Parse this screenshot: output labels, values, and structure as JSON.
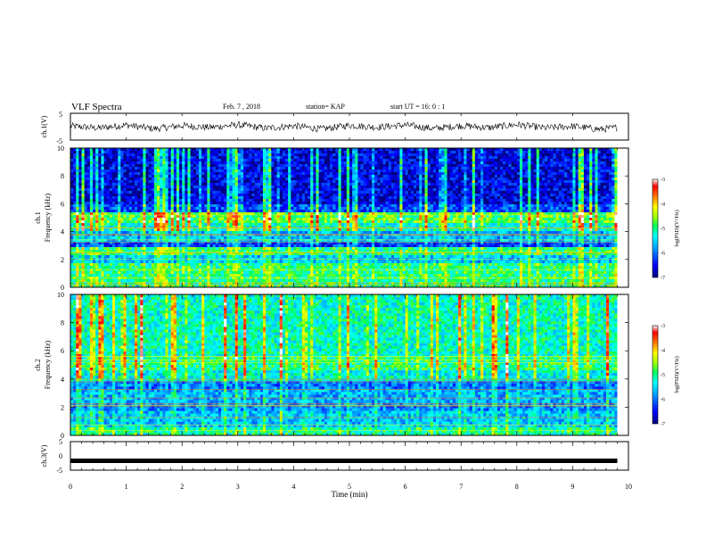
{
  "header": {
    "title": "VLF Spectra",
    "date": "Feb. 7 , 2018",
    "station": "station= KAP",
    "start": "start UT = 16: 0 : 1"
  },
  "colors": {
    "colormap": [
      "#00007a",
      "#0000ff",
      "#00a0ff",
      "#00ffff",
      "#00ff60",
      "#a0ff00",
      "#ffff00",
      "#ff8000",
      "#ff0000",
      "#ffffff"
    ]
  },
  "chart_data": [
    {
      "type": "line",
      "panel": "ch1-waveform",
      "ylabel": "ch.1(V)",
      "ylim": [
        -5,
        5
      ],
      "yticks": [
        "5",
        "-5"
      ],
      "xlim": [
        0,
        10
      ],
      "note_values": "continuous noisy waveform oscillating roughly between -2 and 1.5 V",
      "x": [
        0,
        0.5,
        1,
        1.5,
        2,
        2.5,
        3,
        3.5,
        4,
        4.5,
        5,
        5.5,
        6,
        6.5,
        7,
        7.5,
        8,
        8.5,
        9,
        9.5,
        9.8
      ],
      "y": [
        0.2,
        -0.5,
        0.6,
        -0.8,
        0.4,
        -0.3,
        0.7,
        -0.6,
        0.3,
        -0.9,
        0.5,
        -0.2,
        0.6,
        -0.7,
        0.4,
        -0.4,
        0.8,
        -0.5,
        0.2,
        -1.0,
        -0.3
      ]
    },
    {
      "type": "heatmap",
      "panel": "ch1-spectrogram",
      "ylabel": "ch.1\nFrequency (kHz)",
      "ylim": [
        0,
        10
      ],
      "yticks": [
        "0",
        "2",
        "4",
        "6",
        "8",
        "10"
      ],
      "xlim": [
        0,
        9.8
      ],
      "colorbar": {
        "label": "log(PSD)(V²/Hz)",
        "range": [
          -7,
          -3
        ],
        "ticks": [
          "-3",
          "-4",
          "-5",
          "-6",
          "-7"
        ]
      },
      "bands": [
        {
          "from": 0,
          "to": 0.5,
          "level": -5
        },
        {
          "from": 0.5,
          "to": 1.8,
          "level": -5.0
        },
        {
          "from": 1.8,
          "to": 2.3,
          "level": -5.6
        },
        {
          "from": 2.3,
          "to": 2.8,
          "level": -5.0
        },
        {
          "from": 2.8,
          "to": 3.3,
          "level": -6.3
        },
        {
          "from": 3.3,
          "to": 4.0,
          "level": -5.7
        },
        {
          "from": 4.0,
          "to": 4.6,
          "level": -5.2
        },
        {
          "from": 4.6,
          "to": 5.4,
          "level": -4.8
        },
        {
          "from": 5.4,
          "to": 6.0,
          "level": -6.2
        },
        {
          "from": 6.0,
          "to": 10.0,
          "level": -6.6
        }
      ]
    },
    {
      "type": "heatmap",
      "panel": "ch2-spectrogram",
      "ylabel": "ch.2\nFrequency (kHz)",
      "ylim": [
        0,
        10
      ],
      "yticks": [
        "0",
        "2",
        "4",
        "6",
        "8",
        "10"
      ],
      "xlim": [
        0,
        9.8
      ],
      "colorbar": {
        "label": "log(PSD)(V²/Hz)",
        "range": [
          -7,
          -3
        ],
        "ticks": [
          "-3",
          "-4",
          "-5",
          "-6",
          "-7"
        ]
      },
      "bands": [
        {
          "from": 0,
          "to": 0.6,
          "level": -5.1
        },
        {
          "from": 0.6,
          "to": 1.8,
          "level": -5.6
        },
        {
          "from": 1.8,
          "to": 2.4,
          "level": -5.9
        },
        {
          "from": 2.4,
          "to": 3.2,
          "level": -5.7
        },
        {
          "from": 3.2,
          "to": 3.8,
          "level": -6.0
        },
        {
          "from": 3.8,
          "to": 4.6,
          "level": -5.3
        },
        {
          "from": 4.6,
          "to": 5.5,
          "level": -5.0
        },
        {
          "from": 5.5,
          "to": 10.0,
          "level": -5.2
        }
      ]
    },
    {
      "type": "line",
      "panel": "ch3-waveform",
      "ylabel": "ch.3(V)",
      "ylim": [
        -5,
        5
      ],
      "yticks": [
        "5",
        "0",
        "-5"
      ],
      "xlim": [
        0,
        10
      ],
      "xlabel": "Time (min)",
      "xticks": [
        "0",
        "1",
        "2",
        "3",
        "4",
        "5",
        "6",
        "7",
        "8",
        "9",
        "10"
      ],
      "x": [
        0,
        9.8
      ],
      "y": [
        -1.7,
        -1.7
      ]
    }
  ]
}
